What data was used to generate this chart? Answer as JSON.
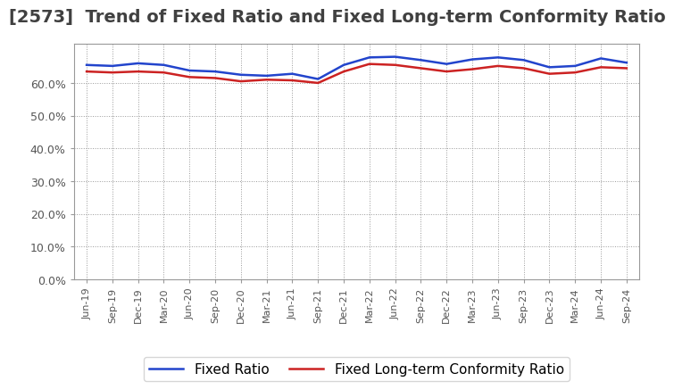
{
  "title": "[2573]  Trend of Fixed Ratio and Fixed Long-term Conformity Ratio",
  "title_fontsize": 14,
  "title_color": "#404040",
  "x_labels": [
    "Jun-19",
    "Sep-19",
    "Dec-19",
    "Mar-20",
    "Jun-20",
    "Sep-20",
    "Dec-20",
    "Mar-21",
    "Jun-21",
    "Sep-21",
    "Dec-21",
    "Mar-22",
    "Jun-22",
    "Sep-22",
    "Dec-22",
    "Mar-23",
    "Jun-23",
    "Sep-23",
    "Dec-23",
    "Mar-24",
    "Jun-24",
    "Sep-24"
  ],
  "fixed_ratio": [
    65.5,
    65.2,
    66.0,
    65.5,
    63.8,
    63.5,
    62.5,
    62.2,
    62.8,
    61.2,
    65.5,
    67.8,
    68.0,
    67.0,
    65.8,
    67.2,
    67.8,
    67.0,
    64.8,
    65.2,
    67.5,
    66.2
  ],
  "fixed_lt_conformity": [
    63.5,
    63.2,
    63.5,
    63.2,
    61.8,
    61.5,
    60.5,
    61.0,
    60.8,
    60.0,
    63.5,
    65.8,
    65.5,
    64.5,
    63.5,
    64.2,
    65.2,
    64.5,
    62.8,
    63.2,
    64.8,
    64.5
  ],
  "fixed_ratio_color": "#2244CC",
  "fixed_lt_color": "#CC2222",
  "line_width": 1.8,
  "ylim_min": 0,
  "ylim_max": 72,
  "yticks": [
    0,
    10,
    20,
    30,
    40,
    50,
    60
  ],
  "ytick_labels": [
    "0.0%",
    "10.0%",
    "20.0%",
    "30.0%",
    "40.0%",
    "50.0%",
    "60.0%"
  ],
  "grid_color": "#999999",
  "grid_linestyle": ":",
  "grid_linewidth": 0.7,
  "bg_color": "#ffffff",
  "plot_bg_color": "#ffffff",
  "legend_fixed_ratio": "Fixed Ratio",
  "legend_fixed_lt": "Fixed Long-term Conformity Ratio",
  "legend_fontsize": 11,
  "tick_fontsize": 9,
  "xlabel_fontsize": 8,
  "spine_color": "#999999"
}
